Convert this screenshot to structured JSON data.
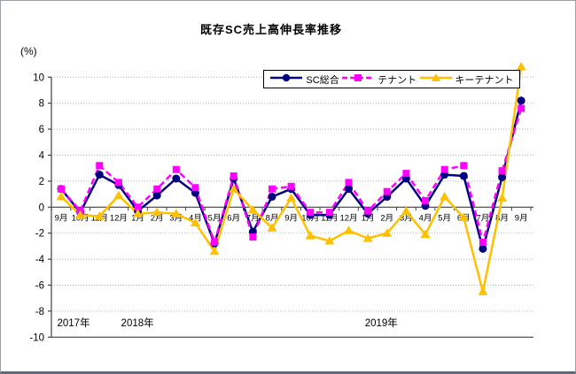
{
  "title": "既存SC売上高伸長率推移",
  "y_axis_unit": "(%)",
  "legend": {
    "entries": [
      "SC総合",
      "テナント",
      "キーテナント"
    ]
  },
  "chart_data": {
    "type": "line",
    "title": "既存SC売上高伸長率推移",
    "ylabel": "(%)",
    "ylim": [
      -10,
      10
    ],
    "ytick_step": 2,
    "ytick_labels": [
      "10",
      "8",
      "6",
      "4",
      "2",
      "0",
      "-2",
      "-4",
      "-6",
      "-8",
      "-10"
    ],
    "grid": true,
    "legend_position": "top-center",
    "categories": [
      "9月",
      "10月",
      "11月",
      "12月",
      "1月",
      "2月",
      "3月",
      "4月",
      "5月",
      "6月",
      "7月",
      "8月",
      "9月",
      "10月",
      "11月",
      "12月",
      "1月",
      "2月",
      "3月",
      "4月",
      "5月",
      "6月",
      "7月",
      "8月",
      "9月"
    ],
    "year_labels": [
      {
        "text": "2017年",
        "index": 0.65
      },
      {
        "text": "2018年",
        "index": 3.98
      },
      {
        "text": "2019年",
        "index": 16.7
      }
    ],
    "series": [
      {
        "name": "SC総合",
        "color": "#000080",
        "marker": "circle",
        "line_style": "solid",
        "values": [
          1.4,
          -0.4,
          2.5,
          1.7,
          -0.3,
          0.9,
          2.2,
          1.1,
          -2.8,
          2.2,
          -1.9,
          0.8,
          1.4,
          -0.6,
          -0.6,
          1.4,
          -0.5,
          0.8,
          2.2,
          0.1,
          2.5,
          2.4,
          -3.2,
          2.3,
          8.2
        ]
      },
      {
        "name": "テナント",
        "color": "#FF00FF",
        "marker": "square",
        "line_style": "dashed",
        "values": [
          1.4,
          -0.3,
          3.2,
          1.9,
          0.0,
          1.4,
          2.9,
          1.5,
          -2.7,
          2.4,
          -2.3,
          1.4,
          1.6,
          -0.4,
          -0.4,
          1.9,
          -0.3,
          1.2,
          2.6,
          0.5,
          2.9,
          3.2,
          -2.7,
          2.8,
          7.6
        ]
      },
      {
        "name": "キーテナント",
        "color": "#FFC000",
        "marker": "triangle",
        "line_style": "solid",
        "values": [
          0.8,
          -0.6,
          -0.7,
          0.9,
          -0.5,
          -0.4,
          -0.5,
          -1.2,
          -3.4,
          1.4,
          -0.2,
          -1.6,
          0.7,
          -2.2,
          -2.6,
          -1.8,
          -2.4,
          -2.0,
          -0.3,
          -2.1,
          0.8,
          -0.8,
          -6.5,
          0.7,
          10.8
        ]
      }
    ],
    "axis_color": "#404040",
    "gridline_color": "#b3b3b3"
  }
}
